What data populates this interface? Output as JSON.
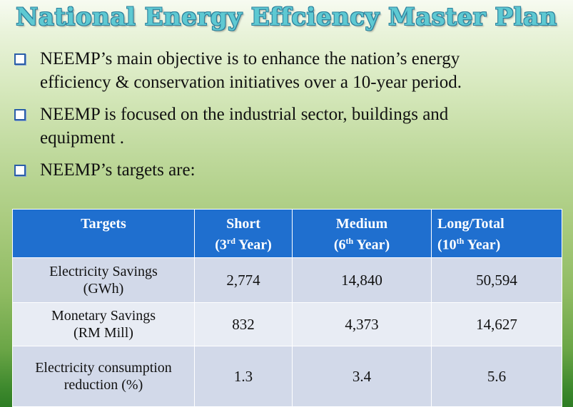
{
  "title": "National Energy Effciency Master Plan",
  "bullets": [
    {
      "line1": "NEEMP’s main objective is  to enhance the nation’s energy",
      "line2": "efficiency & conservation initiatives over a 10-year period."
    },
    {
      "line1": "NEEMP is focused on the industrial sector, buildings and",
      "line2": "equipment ."
    },
    {
      "line1": "NEEMP’s targets are:"
    }
  ],
  "table": {
    "headers": {
      "targets": "Targets",
      "short": {
        "main": "Short",
        "sub_pre": "(3",
        "sup": "rd",
        "sub_post": " Year)"
      },
      "medium": {
        "main": "Medium",
        "sub_pre": "(6",
        "sup": "th",
        "sub_post": " Year)"
      },
      "long": {
        "main": "Long/Total",
        "sub_pre": "(10",
        "sup": "th",
        "sub_post": " Year)"
      }
    },
    "rows": [
      {
        "label1": "Electricity Savings",
        "label2": "(GWh)",
        "short": "2,774",
        "medium": "14,840",
        "long": "50,594"
      },
      {
        "label1": "Monetary Savings",
        "label2": "(RM Mill)",
        "short": "832",
        "medium": "4,373",
        "long": "14,627"
      },
      {
        "label1": "Electricity consumption",
        "label2": "reduction (%)",
        "short": "1.3",
        "medium": "3.4",
        "long": "5.6"
      }
    ]
  }
}
